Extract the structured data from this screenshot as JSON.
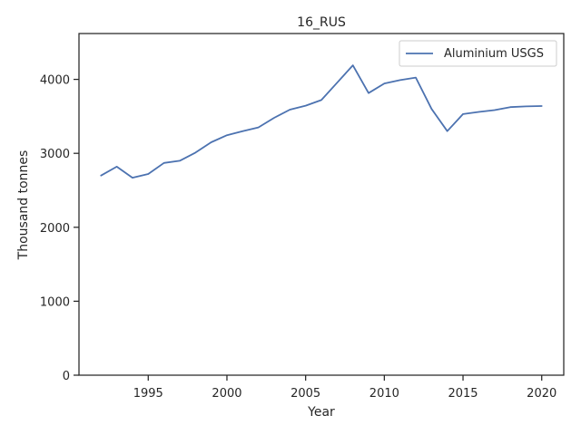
{
  "chart_data": {
    "type": "line",
    "title": "16_RUS",
    "xlabel": "Year",
    "ylabel": "Thousand tonnes",
    "xlim": [
      1990.6,
      2021.4
    ],
    "ylim": [
      0,
      4620
    ],
    "xticks": [
      1995,
      2000,
      2005,
      2010,
      2015,
      2020
    ],
    "yticks": [
      0,
      1000,
      2000,
      3000,
      4000
    ],
    "grid": false,
    "legend": "top-right",
    "series": [
      {
        "name": "Aluminium USGS",
        "color": "#4c72b0",
        "x": [
          1992,
          1993,
          1994,
          1995,
          1996,
          1997,
          1998,
          1999,
          2000,
          2001,
          2002,
          2003,
          2004,
          2005,
          2006,
          2007,
          2008,
          2009,
          2010,
          2011,
          2012,
          2013,
          2014,
          2015,
          2016,
          2017,
          2018,
          2019,
          2020
        ],
        "values": [
          2700,
          2820,
          2670,
          2720,
          2870,
          2900,
          3010,
          3150,
          3245,
          3300,
          3350,
          3480,
          3590,
          3645,
          3720,
          3955,
          4190,
          3815,
          3945,
          3990,
          4025,
          3600,
          3300,
          3530,
          3560,
          3585,
          3625,
          3635,
          3640
        ]
      }
    ]
  }
}
